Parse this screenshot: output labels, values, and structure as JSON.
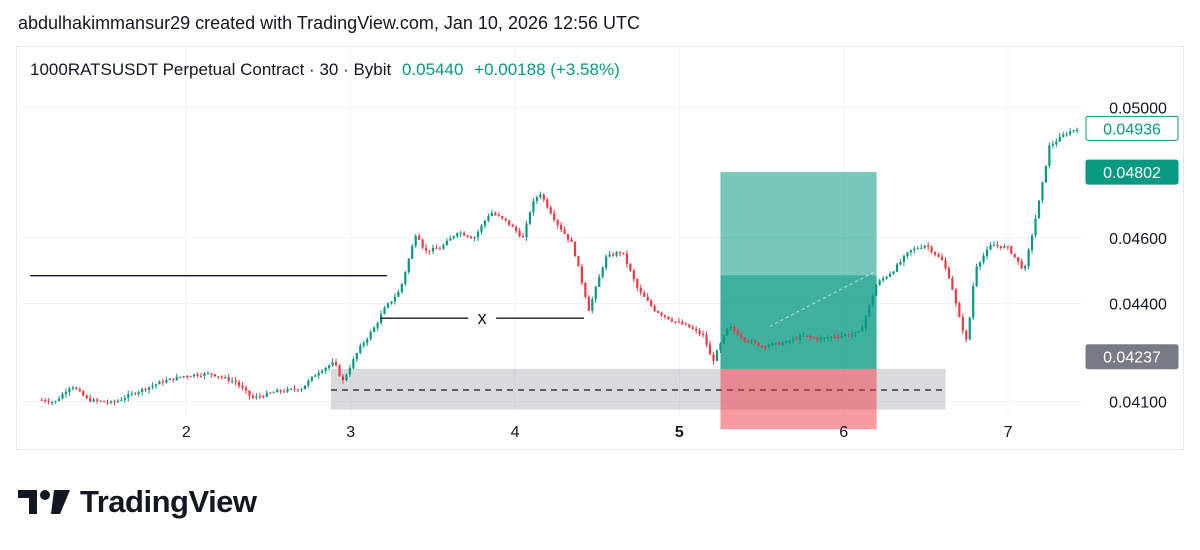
{
  "header": {
    "attribution": "abdulhakimmansur29 created with TradingView.com, Jan 10, 2026 12:56 UTC"
  },
  "symbol": {
    "name": "1000RATSUSDT Perpetual Contract · 30 · Bybit",
    "last": "0.05440",
    "change": "+0.00188 (+3.58%)"
  },
  "brand": {
    "name": "TradingView",
    "icon": "tradingview-logo-icon"
  },
  "colors": {
    "up": "#089981",
    "down": "#f23645",
    "target_zone": "#089981",
    "stop_zone": "#f23645",
    "support_zone": "#b2b5be",
    "current_price_tag": "#089981",
    "level_tag": "#787b86"
  },
  "chart_data": {
    "type": "candlestick",
    "x_ticks": [
      {
        "label": "2",
        "x": 2
      },
      {
        "label": "3",
        "x": 3
      },
      {
        "label": "4",
        "x": 4
      },
      {
        "label": "5",
        "x": 5,
        "bold": true
      },
      {
        "label": "6",
        "x": 6
      },
      {
        "label": "7",
        "x": 7
      }
    ],
    "y_ticks": [
      "0.05000",
      "0.04600",
      "0.04400",
      "0.04100"
    ],
    "ylim": [
      0.0408,
      0.0509
    ],
    "xlim": [
      1.0,
      7.45
    ],
    "price_tags": [
      {
        "label": "0.04936",
        "value": 0.04936,
        "style": "outline"
      },
      {
        "label": "0.04802",
        "value": 0.04802,
        "style": "green"
      },
      {
        "label": "0.04237",
        "value": 0.04237,
        "style": "gray"
      }
    ],
    "price_path": [
      [
        1.12,
        0.04105
      ],
      [
        1.2,
        0.04098
      ],
      [
        1.3,
        0.0415
      ],
      [
        1.4,
        0.04105
      ],
      [
        1.55,
        0.04095
      ],
      [
        1.7,
        0.0413
      ],
      [
        1.85,
        0.0416
      ],
      [
        2.0,
        0.0418
      ],
      [
        2.15,
        0.04185
      ],
      [
        2.3,
        0.0416
      ],
      [
        2.4,
        0.0411
      ],
      [
        2.55,
        0.0413
      ],
      [
        2.7,
        0.0414
      ],
      [
        2.8,
        0.0419
      ],
      [
        2.9,
        0.0422
      ],
      [
        2.95,
        0.0416
      ],
      [
        3.05,
        0.0426
      ],
      [
        3.15,
        0.0433
      ],
      [
        3.2,
        0.0438
      ],
      [
        3.3,
        0.0444
      ],
      [
        3.4,
        0.0462
      ],
      [
        3.45,
        0.0456
      ],
      [
        3.55,
        0.0457
      ],
      [
        3.65,
        0.0462
      ],
      [
        3.75,
        0.046
      ],
      [
        3.85,
        0.0468
      ],
      [
        3.95,
        0.0465
      ],
      [
        4.05,
        0.046
      ],
      [
        4.1,
        0.047
      ],
      [
        4.15,
        0.0474
      ],
      [
        4.25,
        0.0465
      ],
      [
        4.35,
        0.0458
      ],
      [
        4.45,
        0.0438
      ],
      [
        4.55,
        0.0454
      ],
      [
        4.65,
        0.0456
      ],
      [
        4.75,
        0.0444
      ],
      [
        4.85,
        0.0438
      ],
      [
        4.95,
        0.0435
      ],
      [
        5.05,
        0.0433
      ],
      [
        5.15,
        0.043
      ],
      [
        5.2,
        0.0422
      ],
      [
        5.3,
        0.0433
      ],
      [
        5.4,
        0.0429
      ],
      [
        5.5,
        0.0427
      ],
      [
        5.65,
        0.0428
      ],
      [
        5.75,
        0.043
      ],
      [
        5.85,
        0.0429
      ],
      [
        5.95,
        0.043
      ],
      [
        6.1,
        0.0431
      ],
      [
        6.2,
        0.0446
      ],
      [
        6.3,
        0.045
      ],
      [
        6.4,
        0.0456
      ],
      [
        6.5,
        0.0458
      ],
      [
        6.6,
        0.0453
      ],
      [
        6.65,
        0.0447
      ],
      [
        6.7,
        0.0436
      ],
      [
        6.75,
        0.0428
      ],
      [
        6.8,
        0.0451
      ],
      [
        6.9,
        0.0458
      ],
      [
        7.0,
        0.0457
      ],
      [
        7.1,
        0.045
      ],
      [
        7.15,
        0.0462
      ],
      [
        7.2,
        0.0474
      ],
      [
        7.25,
        0.0488
      ],
      [
        7.35,
        0.0492
      ],
      [
        7.42,
        0.04936
      ]
    ],
    "drawings": {
      "horizontal_line": {
        "x1": 1.05,
        "x2": 3.22,
        "y": 0.04485
      },
      "range_line": {
        "x1": 3.18,
        "x2": 4.42,
        "y": 0.04355,
        "label": "x"
      },
      "support_zone": {
        "x1": 2.88,
        "x2": 6.62,
        "y_top": 0.042,
        "y_bottom": 0.04075,
        "mid": 0.04135
      },
      "position": {
        "x1": 5.25,
        "x2": 6.2,
        "target": 0.04802,
        "entry": 0.04486,
        "stop_bottom": 0.04015,
        "stop_top": 0.042,
        "fill_start": 0.043,
        "fill_end": 0.045
      }
    }
  }
}
